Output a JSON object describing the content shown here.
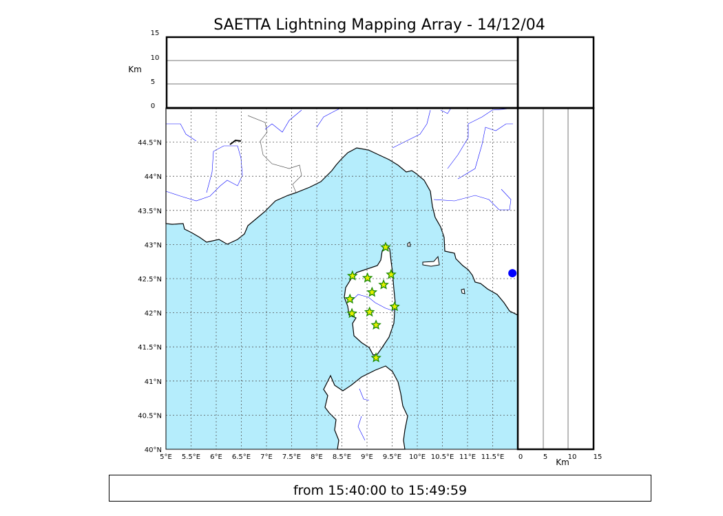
{
  "title": "SAETTA Lightning Mapping Array - 14/12/04",
  "time_range": "from 15:40:00 to 15:49:59",
  "colors": {
    "sea": "#b5edfc",
    "land": "#ffffff",
    "rivers": "#0000ff",
    "border": "#555555",
    "marker_fill": "#e6f000",
    "marker_stroke": "#1a8a00",
    "station": "#0000ff"
  },
  "chart_data": {
    "type": "scatter",
    "title": "SAETTA Lightning Mapping Array - 14/12/04",
    "map": {
      "xlim": [
        5,
        12
      ],
      "ylim": [
        40,
        45
      ],
      "x_ticks": [
        "5°E",
        "5.5°E",
        "6°E",
        "6.5°E",
        "7°E",
        "7.5°E",
        "8°E",
        "8.5°E",
        "9°E",
        "9.5°E",
        "10°E",
        "10.5°E",
        "11°E",
        "11.5°E"
      ],
      "y_ticks": [
        "40°N",
        "40.5°N",
        "41°N",
        "41.5°N",
        "42°N",
        "42.5°N",
        "43°N",
        "43.5°N",
        "44°N",
        "44.5°N"
      ],
      "grid": true,
      "marker": "star",
      "points": [
        {
          "lon": 9.37,
          "lat": 42.96
        },
        {
          "lon": 8.71,
          "lat": 42.54
        },
        {
          "lon": 9.01,
          "lat": 42.51
        },
        {
          "lon": 9.48,
          "lat": 42.56
        },
        {
          "lon": 9.33,
          "lat": 42.41
        },
        {
          "lon": 9.1,
          "lat": 42.3
        },
        {
          "lon": 8.66,
          "lat": 42.2
        },
        {
          "lon": 9.55,
          "lat": 42.09
        },
        {
          "lon": 9.05,
          "lat": 42.01
        },
        {
          "lon": 8.7,
          "lat": 41.99
        },
        {
          "lon": 9.18,
          "lat": 41.82
        },
        {
          "lon": 9.18,
          "lat": 41.34
        }
      ],
      "station": {
        "lon": 11.92,
        "lat": 42.58
      }
    },
    "altitude_panel": {
      "ylabel": "Km",
      "ylim": [
        0,
        15
      ],
      "y_ticks": [
        "0",
        "5",
        "10",
        "15"
      ]
    },
    "side_panel": {
      "xlabel": "Km",
      "xlim": [
        0,
        15
      ],
      "x_ticks": [
        "0",
        "5",
        "10",
        "15"
      ]
    }
  }
}
